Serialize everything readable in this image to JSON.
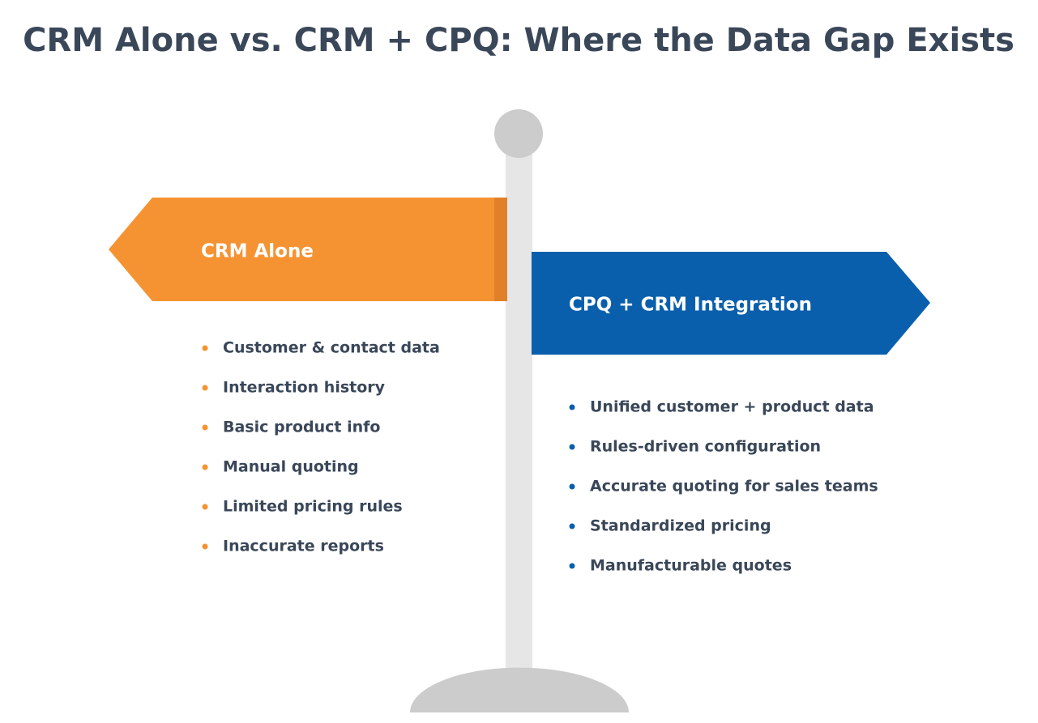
{
  "title": "CRM Alone vs. CRM + CPQ: Where the Data Gap Exists",
  "left": {
    "label": "CRM Alone",
    "items": [
      "Customer & contact data",
      "Interaction history",
      "Basic product info",
      "Manual quoting",
      "Limited pricing rules",
      "Inaccurate reports"
    ]
  },
  "right": {
    "label": "CPQ + CRM Integration",
    "items": [
      "Unified customer + product data",
      "Rules-driven configuration",
      "Accurate quoting for sales teams",
      "Standardized pricing",
      "Manufacturable quotes"
    ]
  }
}
